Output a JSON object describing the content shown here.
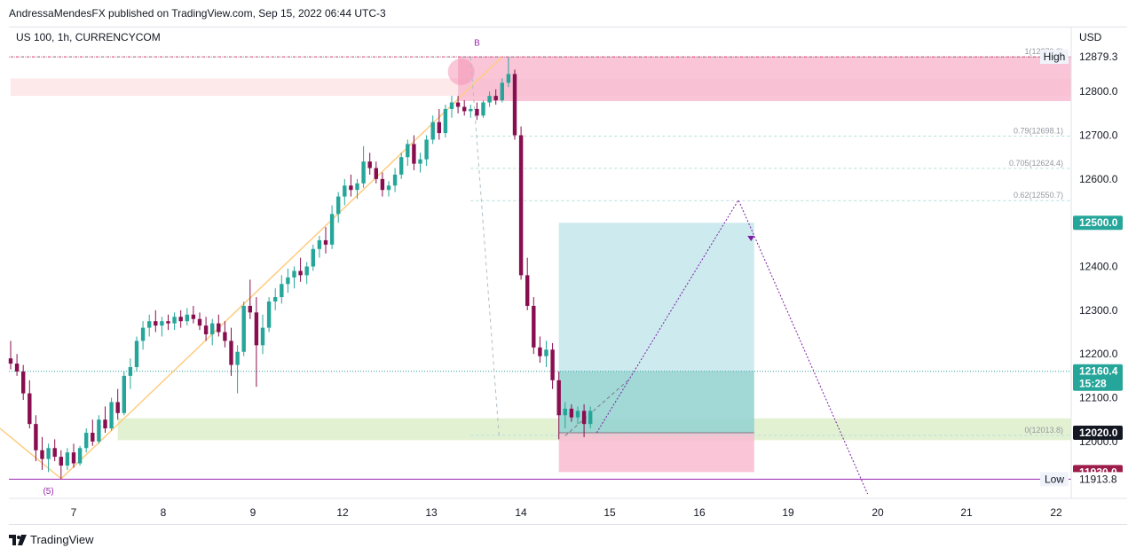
{
  "header": {
    "publisher_line": "AndressaMendesFX published on TradingView.com, Sep 15, 2022 06:44 UTC-3",
    "symbol": "US 100, 1h, CURRENCYCOM",
    "currency": "USD"
  },
  "footer": {
    "brand": "TradingView"
  },
  "colors": {
    "up": "#26a69a",
    "down": "#880e4f",
    "wick": "#131722",
    "target_zone": "#b2dfe5",
    "stop_zone": "#f8bbd0",
    "supply_zone": "#f8bbd0",
    "demand_zone": "#dcedc8",
    "trend_line": "#ffcc80",
    "projection": "#7b1fa2"
  },
  "chart_data": {
    "type": "candlestick",
    "x_tick_labels": [
      "7",
      "8",
      "9",
      "12",
      "13",
      "14",
      "15",
      "16",
      "19",
      "20",
      "21",
      "22"
    ],
    "y_ticks": [
      12000.0,
      12100.0,
      12200.0,
      12300.0,
      12400.0,
      12500.0,
      12600.0,
      12700.0,
      12800.0
    ],
    "y_range": [
      11870,
      12920
    ],
    "price_tags": [
      {
        "label": "12879.3",
        "price": 12879.3,
        "style": "plain",
        "side_label": "High"
      },
      {
        "label": "12500.0",
        "price": 12500.0,
        "style": "teal"
      },
      {
        "label": "12160.4",
        "price": 12160.4,
        "style": "teal",
        "sub": "15:28"
      },
      {
        "label": "12020.0",
        "price": 12020.0,
        "style": "dark"
      },
      {
        "label": "11930.0",
        "price": 11930.0,
        "style": "maroon"
      },
      {
        "label": "11913.8",
        "price": 11913.8,
        "style": "plain",
        "side_label": "Low"
      }
    ],
    "fib_levels": [
      {
        "label": "1(12879.3)",
        "price": 12879.3
      },
      {
        "label": "0.79(12698.1)",
        "price": 12698.1
      },
      {
        "label": "0.705(12624.4)",
        "price": 12624.4
      },
      {
        "label": "0.62(12550.7)",
        "price": 12550.7
      },
      {
        "label": "0(12013.8)",
        "price": 12013.8
      }
    ],
    "wave_labels": [
      {
        "label": "B",
        "bar": 74,
        "price": 12905
      },
      {
        "label": "(5)",
        "bar": 6,
        "price": 11880
      }
    ],
    "supply_zone": {
      "from_bar": 0,
      "to_bar": 170,
      "top": 12830,
      "bottom": 12790
    },
    "supply_zone_strong": {
      "from_bar": 71,
      "to_bar": 170,
      "top": 12880,
      "bottom": 12778
    },
    "demand_zone": {
      "from_bar": 17,
      "to_bar": 170,
      "top": 12053,
      "bottom": 12003
    },
    "position": {
      "from_bar": 87,
      "to_bar": 118,
      "target": 12500.0,
      "entry": 12160.4,
      "base": 12020.0,
      "stop": 11930.0
    },
    "projection_path": [
      {
        "bar": 93,
        "price": 12020
      },
      {
        "bar": 115.5,
        "price": 12552
      },
      {
        "bar": 136,
        "price": 11880
      }
    ],
    "candles": [
      {
        "o": 12190,
        "h": 12230,
        "l": 12165,
        "c": 12178
      },
      {
        "o": 12178,
        "h": 12200,
        "l": 12150,
        "c": 12160
      },
      {
        "o": 12160,
        "h": 12175,
        "l": 12095,
        "c": 12110
      },
      {
        "o": 12110,
        "h": 12140,
        "l": 12030,
        "c": 12040
      },
      {
        "o": 12040,
        "h": 12060,
        "l": 11955,
        "c": 11980
      },
      {
        "o": 11980,
        "h": 12010,
        "l": 11935,
        "c": 11960
      },
      {
        "o": 11960,
        "h": 11995,
        "l": 11930,
        "c": 11985
      },
      {
        "o": 11985,
        "h": 12005,
        "l": 11955,
        "c": 11965
      },
      {
        "o": 11965,
        "h": 11980,
        "l": 11913.8,
        "c": 11945
      },
      {
        "o": 11945,
        "h": 11985,
        "l": 11935,
        "c": 11975
      },
      {
        "o": 11975,
        "h": 11995,
        "l": 11940,
        "c": 11950
      },
      {
        "o": 11950,
        "h": 11990,
        "l": 11945,
        "c": 11985
      },
      {
        "o": 11985,
        "h": 12030,
        "l": 11975,
        "c": 12020
      },
      {
        "o": 12020,
        "h": 12050,
        "l": 11990,
        "c": 12000
      },
      {
        "o": 12000,
        "h": 12060,
        "l": 11995,
        "c": 12050
      },
      {
        "o": 12050,
        "h": 12080,
        "l": 12020,
        "c": 12030
      },
      {
        "o": 12030,
        "h": 12100,
        "l": 12025,
        "c": 12090
      },
      {
        "o": 12090,
        "h": 12120,
        "l": 12050,
        "c": 12065
      },
      {
        "o": 12065,
        "h": 12160,
        "l": 12060,
        "c": 12150
      },
      {
        "o": 12150,
        "h": 12190,
        "l": 12120,
        "c": 12170
      },
      {
        "o": 12170,
        "h": 12240,
        "l": 12160,
        "c": 12230
      },
      {
        "o": 12230,
        "h": 12275,
        "l": 12210,
        "c": 12260
      },
      {
        "o": 12260,
        "h": 12290,
        "l": 12240,
        "c": 12275
      },
      {
        "o": 12275,
        "h": 12300,
        "l": 12250,
        "c": 12265
      },
      {
        "o": 12265,
        "h": 12285,
        "l": 12240,
        "c": 12275
      },
      {
        "o": 12275,
        "h": 12290,
        "l": 12255,
        "c": 12270
      },
      {
        "o": 12270,
        "h": 12295,
        "l": 12255,
        "c": 12285
      },
      {
        "o": 12285,
        "h": 12300,
        "l": 12260,
        "c": 12275
      },
      {
        "o": 12275,
        "h": 12305,
        "l": 12265,
        "c": 12290
      },
      {
        "o": 12290,
        "h": 12310,
        "l": 12270,
        "c": 12280
      },
      {
        "o": 12280,
        "h": 12295,
        "l": 12255,
        "c": 12265
      },
      {
        "o": 12265,
        "h": 12285,
        "l": 12230,
        "c": 12245
      },
      {
        "o": 12245,
        "h": 12280,
        "l": 12220,
        "c": 12270
      },
      {
        "o": 12270,
        "h": 12290,
        "l": 12240,
        "c": 12250
      },
      {
        "o": 12250,
        "h": 12275,
        "l": 12215,
        "c": 12230
      },
      {
        "o": 12230,
        "h": 12260,
        "l": 12150,
        "c": 12175
      },
      {
        "o": 12175,
        "h": 12220,
        "l": 12110,
        "c": 12205
      },
      {
        "o": 12205,
        "h": 12320,
        "l": 12195,
        "c": 12310
      },
      {
        "o": 12310,
        "h": 12370,
        "l": 12280,
        "c": 12295
      },
      {
        "o": 12295,
        "h": 12330,
        "l": 12125,
        "c": 12220
      },
      {
        "o": 12220,
        "h": 12290,
        "l": 12200,
        "c": 12260
      },
      {
        "o": 12260,
        "h": 12330,
        "l": 12250,
        "c": 12320
      },
      {
        "o": 12320,
        "h": 12350,
        "l": 12300,
        "c": 12330
      },
      {
        "o": 12330,
        "h": 12380,
        "l": 12315,
        "c": 12360
      },
      {
        "o": 12360,
        "h": 12395,
        "l": 12340,
        "c": 12375
      },
      {
        "o": 12375,
        "h": 12400,
        "l": 12350,
        "c": 12390
      },
      {
        "o": 12390,
        "h": 12420,
        "l": 12365,
        "c": 12380
      },
      {
        "o": 12380,
        "h": 12410,
        "l": 12360,
        "c": 12400
      },
      {
        "o": 12400,
        "h": 12450,
        "l": 12390,
        "c": 12440
      },
      {
        "o": 12440,
        "h": 12470,
        "l": 12420,
        "c": 12460
      },
      {
        "o": 12460,
        "h": 12490,
        "l": 12430,
        "c": 12450
      },
      {
        "o": 12450,
        "h": 12540,
        "l": 12440,
        "c": 12520
      },
      {
        "o": 12520,
        "h": 12570,
        "l": 12500,
        "c": 12560
      },
      {
        "o": 12560,
        "h": 12600,
        "l": 12540,
        "c": 12585
      },
      {
        "o": 12585,
        "h": 12610,
        "l": 12560,
        "c": 12575
      },
      {
        "o": 12575,
        "h": 12600,
        "l": 12555,
        "c": 12590
      },
      {
        "o": 12590,
        "h": 12675,
        "l": 12580,
        "c": 12640
      },
      {
        "o": 12640,
        "h": 12660,
        "l": 12610,
        "c": 12625
      },
      {
        "o": 12625,
        "h": 12640,
        "l": 12590,
        "c": 12600
      },
      {
        "o": 12600,
        "h": 12615,
        "l": 12560,
        "c": 12575
      },
      {
        "o": 12575,
        "h": 12595,
        "l": 12560,
        "c": 12585
      },
      {
        "o": 12585,
        "h": 12625,
        "l": 12570,
        "c": 12610
      },
      {
        "o": 12610,
        "h": 12660,
        "l": 12600,
        "c": 12650
      },
      {
        "o": 12650,
        "h": 12690,
        "l": 12630,
        "c": 12680
      },
      {
        "o": 12680,
        "h": 12700,
        "l": 12620,
        "c": 12635
      },
      {
        "o": 12635,
        "h": 12660,
        "l": 12615,
        "c": 12645
      },
      {
        "o": 12645,
        "h": 12700,
        "l": 12630,
        "c": 12690
      },
      {
        "o": 12690,
        "h": 12745,
        "l": 12680,
        "c": 12730
      },
      {
        "o": 12730,
        "h": 12760,
        "l": 12690,
        "c": 12705
      },
      {
        "o": 12705,
        "h": 12770,
        "l": 12695,
        "c": 12760
      },
      {
        "o": 12760,
        "h": 12790,
        "l": 12740,
        "c": 12775
      },
      {
        "o": 12775,
        "h": 12790,
        "l": 12750,
        "c": 12765
      },
      {
        "o": 12765,
        "h": 12780,
        "l": 12745,
        "c": 12755
      },
      {
        "o": 12755,
        "h": 12770,
        "l": 12740,
        "c": 12760
      },
      {
        "o": 12760,
        "h": 12775,
        "l": 12735,
        "c": 12745
      },
      {
        "o": 12745,
        "h": 12780,
        "l": 12740,
        "c": 12775
      },
      {
        "o": 12775,
        "h": 12800,
        "l": 12765,
        "c": 12790
      },
      {
        "o": 12790,
        "h": 12805,
        "l": 12770,
        "c": 12780
      },
      {
        "o": 12780,
        "h": 12830,
        "l": 12775,
        "c": 12820
      },
      {
        "o": 12820,
        "h": 12879.3,
        "l": 12810,
        "c": 12840
      },
      {
        "o": 12840,
        "h": 12850,
        "l": 12690,
        "c": 12700
      },
      {
        "o": 12700,
        "h": 12720,
        "l": 12370,
        "c": 12380
      },
      {
        "o": 12380,
        "h": 12420,
        "l": 12300,
        "c": 12310
      },
      {
        "o": 12310,
        "h": 12330,
        "l": 12200,
        "c": 12215
      },
      {
        "o": 12215,
        "h": 12240,
        "l": 12180,
        "c": 12195
      },
      {
        "o": 12195,
        "h": 12230,
        "l": 12170,
        "c": 12210
      },
      {
        "o": 12210,
        "h": 12225,
        "l": 12120,
        "c": 12140
      },
      {
        "o": 12140,
        "h": 12160,
        "l": 12005,
        "c": 12060
      },
      {
        "o": 12060,
        "h": 12090,
        "l": 12030,
        "c": 12075
      },
      {
        "o": 12075,
        "h": 12085,
        "l": 12045,
        "c": 12055
      },
      {
        "o": 12055,
        "h": 12080,
        "l": 12040,
        "c": 12070
      },
      {
        "o": 12070,
        "h": 12085,
        "l": 12010,
        "c": 12040
      },
      {
        "o": 12040,
        "h": 12080,
        "l": 12030,
        "c": 12070
      }
    ]
  }
}
